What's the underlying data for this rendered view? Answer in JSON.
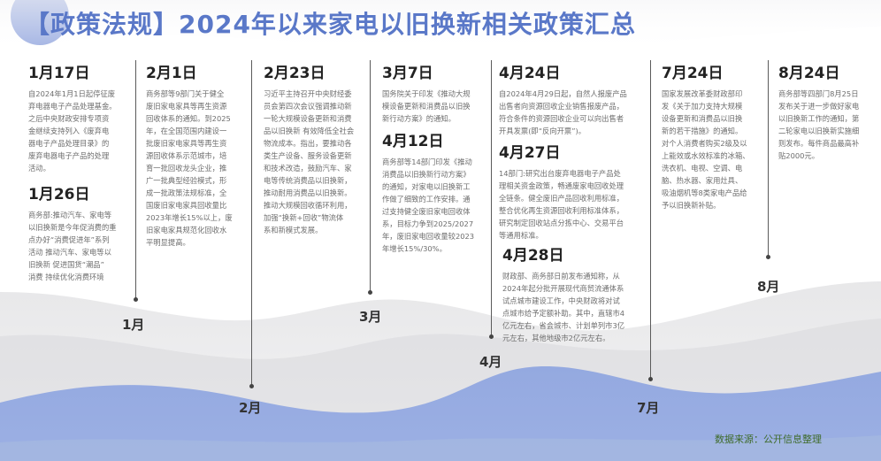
{
  "title": "【政策法规】2024年以来家电以旧换新相关政策汇总",
  "entries": [
    {
      "date": "1月17日",
      "text": "自2024年1月1日起停征废\n弃电器电子产品处理基金。\n之后中央财政安排专项资\n金继续支持列入《废弃电\n器电子产品处理目录》的\n废弃电器电子产品的处理\n活动。"
    },
    {
      "date": "1月26日",
      "text": "商务部:推动汽车、家电等\n以旧换新是今年促消费的重\n点办好“消费促进年”系列\n活动 推动汽车、家电等以\n旧换新 促进国货“潮品”\n消费 持续优化消费环境"
    },
    {
      "date": "2月1日",
      "text": "商务部等9部门关于健全\n废旧家电家具等再生资源\n回收体系的通知。到2025\n年，在全国范围内建设一\n批废旧家电家具等再生资\n源回收体系示范城市，培\n育一批回收龙头企业，推\n广一批典型经验模式，形\n成一批政策法规标准，全\n国废旧家电家具回收量比\n2023年增长15%以上，废\n旧家电家具规范化回收水\n平明显提高。"
    },
    {
      "date": "2月23日",
      "text": "习近平主持召开中央财经委\n员会第四次会议强调推动新\n一轮大规模设备更新和消费\n品以旧换新 有效降低全社会\n物流成本。指出，要推动各\n类生产设备、服务设备更新\n和技术改造，鼓励汽车、家\n电等传统消费品以旧换新，\n推动耐用消费品以旧换新。\n推动大规模回收循环利用，\n加强“换新+回收”物流体\n系和新模式发展。"
    },
    {
      "date": "3月7日",
      "text": "国务院关于印发《推动大规\n模设备更新和消费品以旧换\n新行动方案》的通知。"
    },
    {
      "date": "4月12日",
      "text": "商务部等14部门印发《推动\n消费品以旧换新行动方案》\n的通知，对家电以旧换新工\n作做了细致的工作安排。通\n过支持健全废旧家电回收体\n系，目标力争到2025/2027\n年，废旧家电回收量较2023\n年增长15%/30%。"
    },
    {
      "date": "4月24日",
      "text": "自2024年4月29日起，自然人报废产品\n出售者向资源回收企业销售报废产品，\n符合条件的资源回收企业可以向出售者\n开具发票(即“反向开票”)。"
    },
    {
      "date": "4月27日",
      "text": "14部门:研究出台废弃电器电子产品处\n理相关资金政策，畅通废家电回收处理\n全链条。健全废旧产品回收利用标准，\n整合优化再生资源回收利用标准体系，\n研究制定回收站点分拣中心、交易平台\n等通用标准。"
    },
    {
      "date": "4月28日",
      "text": "财政部、商务部日前发布通知称，从\n2024年起分批开展现代商贸流通体系\n试点城市建设工作，中央财政将对试\n点城市给予定额补助。其中，直辖市4\n亿元左右，省会城市、计划单列市3亿\n元左右，其他地级市2亿元左右。"
    },
    {
      "date": "7月24日",
      "text": "国家发展改革委财政部印\n发《关于加力支持大规模\n设备更新和消费品以旧换\n新的若干措施》的通知。\n对个人消费者购买2级及以\n上能效或水效标准的冰箱、\n洗衣机、电视、空调、电\n脑、热水器、家用灶具、\n吸油烟机等8类家电产品给\n予以旧换新补贴。"
    },
    {
      "date": "8月24日",
      "text": "商务部等四部门8月25日\n发布关于进一步做好家电\n以旧换新工作的通知，第\n二轮家电以旧换新实施细\n则发布。每件商品最高补\n贴2000元。"
    }
  ],
  "months": [
    "1月",
    "2月",
    "3月",
    "4月",
    "7月",
    "8月"
  ],
  "source": "数据来源：公开信息整理",
  "colors": {
    "title": "#5a78c8",
    "wave_blue": "#8ea4de",
    "wave_gray": "#e6e6e6"
  }
}
